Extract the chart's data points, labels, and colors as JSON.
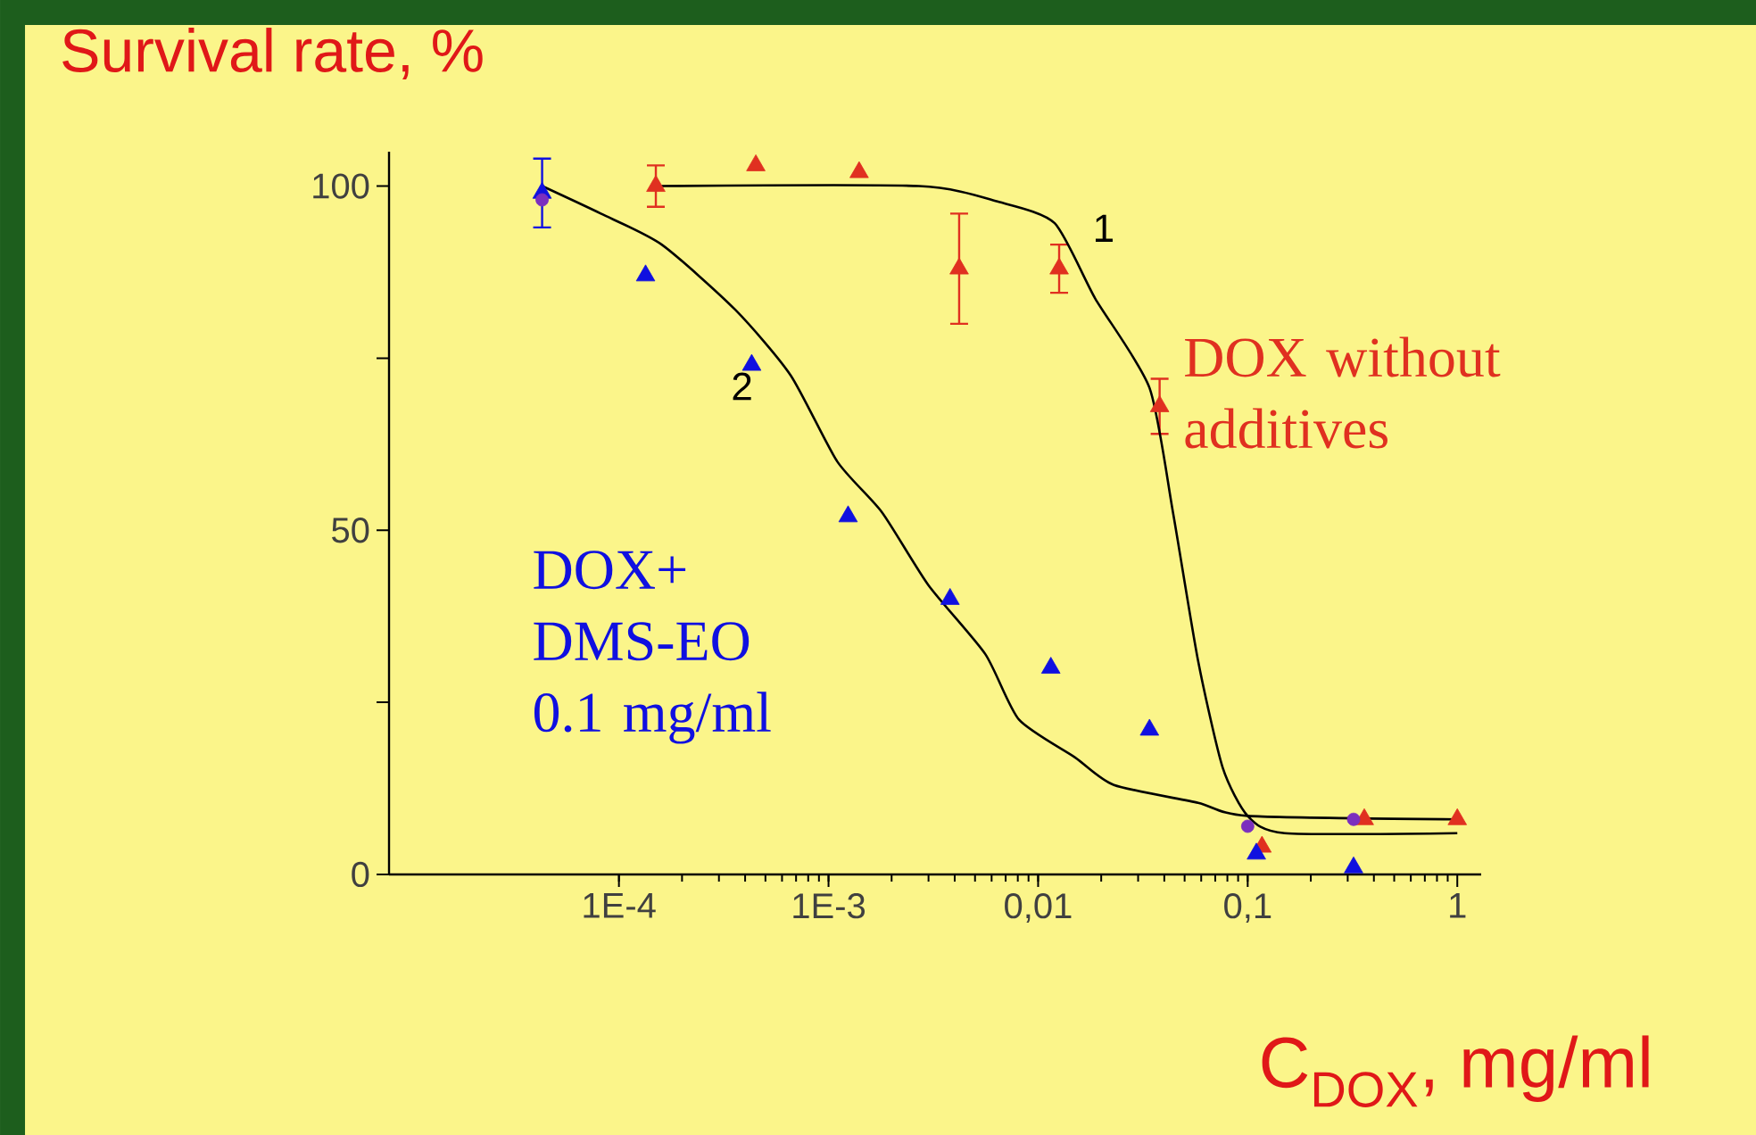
{
  "chart_data": {
    "type": "scatter",
    "ylabel": "Survival rate, %",
    "xlabel": "C$_{DOX}$, mg/ml",
    "log": "x",
    "grid": false,
    "xlim": [
      8e-06,
      1.3
    ],
    "ylim": [
      0,
      105
    ],
    "xticks": [
      {
        "value": 0.0001,
        "label": "1E-4"
      },
      {
        "value": 0.001,
        "label": "1E-3"
      },
      {
        "value": 0.01,
        "label": "0,01"
      },
      {
        "value": 0.1,
        "label": "0,1"
      },
      {
        "value": 1,
        "label": "1"
      }
    ],
    "yticks": [
      0,
      {
        "value": 25,
        "label": null
      },
      50,
      {
        "value": 75,
        "label": null
      },
      100
    ],
    "annotations": [
      "1",
      "2"
    ],
    "series": [
      {
        "name": "DOX without additives",
        "type": "scatter",
        "marker": "triangle",
        "color": "#e03020",
        "x": [
          0.00015,
          0.00045,
          0.0014,
          0.0042,
          0.0126,
          0.038,
          0.117,
          0.36,
          1.0
        ],
        "values": [
          100,
          103,
          102,
          88,
          88,
          68,
          4,
          8,
          8
        ],
        "errors": [
          3,
          null,
          null,
          8,
          3.5,
          4,
          null,
          null,
          null
        ]
      },
      {
        "name": "DOX+ DMS-EO 0.1 mg/ml",
        "type": "scatter",
        "marker": "triangle",
        "color": "#1010e0",
        "x": [
          4.3e-05,
          0.000134,
          0.00043,
          0.00124,
          0.0038,
          0.0115,
          0.034,
          0.11,
          0.32
        ],
        "values": [
          99,
          87,
          74,
          52,
          40,
          30,
          21,
          3,
          1
        ],
        "errors": [
          5,
          null,
          null,
          null,
          null,
          null,
          null,
          null,
          null
        ]
      },
      {
        "type": "scatter",
        "marker": "circle",
        "color": "#7b2fbe",
        "x": [
          4.3e-05,
          0.1,
          0.32
        ],
        "values": [
          98,
          7,
          8
        ]
      },
      {
        "type": "line",
        "marker": "none",
        "color": "#000000",
        "x": [
          0.00015,
          0.0027,
          0.0065,
          0.012,
          0.0187,
          0.034,
          0.044,
          0.058,
          0.076,
          0.1,
          0.15,
          1.0
        ],
        "values": [
          100,
          100,
          97.7,
          94.6,
          83.7,
          70.7,
          52.6,
          31,
          15.5,
          8.5,
          6,
          6
        ]
      },
      {
        "type": "line",
        "marker": "none",
        "color": "#000000",
        "x": [
          4.3e-05,
          8.2e-05,
          0.00016,
          0.00036,
          0.00066,
          0.0011,
          0.0018,
          0.003,
          0.0056,
          0.0081,
          0.015,
          0.023,
          0.058,
          0.1,
          1.0
        ],
        "values": [
          100,
          96,
          91.5,
          82,
          72.5,
          60,
          52.6,
          42,
          32,
          22.5,
          17,
          13,
          10.4,
          8.5,
          8
        ]
      }
    ]
  }
}
